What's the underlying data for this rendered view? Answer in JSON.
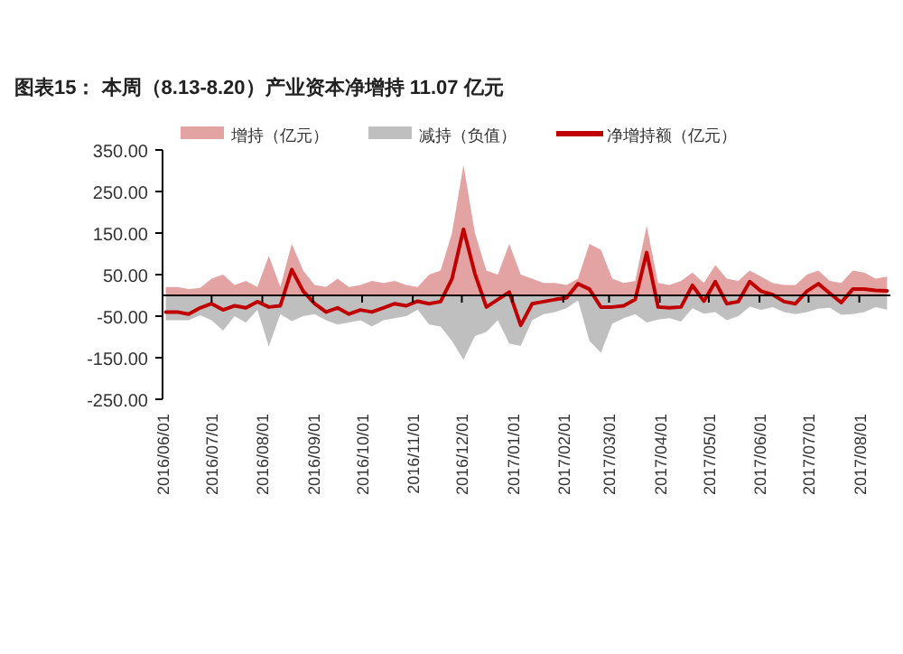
{
  "chart_data": {
    "type": "area",
    "title": "图表15：  本周（8.13-8.20）产业资本净增持 11.07 亿元",
    "x": [
      "2016-06-03",
      "2016-06-10",
      "2016-06-17",
      "2016-06-24",
      "2016-07-01",
      "2016-07-08",
      "2016-07-15",
      "2016-07-22",
      "2016-07-29",
      "2016-08-05",
      "2016-08-12",
      "2016-08-19",
      "2016-08-26",
      "2016-09-02",
      "2016-09-09",
      "2016-09-16",
      "2016-09-23",
      "2016-09-30",
      "2016-10-07",
      "2016-10-14",
      "2016-10-21",
      "2016-10-28",
      "2016-11-04",
      "2016-11-11",
      "2016-11-18",
      "2016-11-25",
      "2016-12-02",
      "2016-12-09",
      "2016-12-16",
      "2016-12-23",
      "2016-12-30",
      "2017-01-06",
      "2017-01-13",
      "2017-01-20",
      "2017-01-27",
      "2017-02-03",
      "2017-02-10",
      "2017-02-17",
      "2017-02-24",
      "2017-03-03",
      "2017-03-10",
      "2017-03-17",
      "2017-03-24",
      "2017-03-31",
      "2017-04-07",
      "2017-04-14",
      "2017-04-21",
      "2017-04-28",
      "2017-05-05",
      "2017-05-12",
      "2017-05-19",
      "2017-05-26",
      "2017-06-02",
      "2017-06-09",
      "2017-06-16",
      "2017-06-23",
      "2017-06-30",
      "2017-07-07",
      "2017-07-14",
      "2017-07-21",
      "2017-07-28",
      "2017-08-04",
      "2017-08-11",
      "2017-08-18"
    ],
    "series": [
      {
        "name": "增持（亿元）",
        "color": "#e3a3a3",
        "values": [
          20,
          20,
          15,
          18,
          40,
          50,
          25,
          35,
          20,
          95,
          20,
          124,
          60,
          25,
          20,
          40,
          20,
          25,
          35,
          30,
          35,
          25,
          20,
          50,
          60,
          150,
          314,
          150,
          60,
          50,
          124,
          50,
          40,
          30,
          30,
          25,
          40,
          124,
          110,
          40,
          30,
          35,
          168,
          30,
          25,
          35,
          55,
          30,
          73,
          40,
          35,
          60,
          45,
          30,
          25,
          25,
          50,
          60,
          35,
          30,
          60,
          55,
          40,
          45
        ]
      },
      {
        "name": "减持（负值）",
        "color": "#bfbfbf",
        "values": [
          -60,
          -60,
          -60,
          -48,
          -60,
          -85,
          -50,
          -65,
          -35,
          -123,
          -45,
          -62,
          -50,
          -45,
          -60,
          -70,
          -65,
          -60,
          -75,
          -60,
          -55,
          -50,
          -34,
          -70,
          -75,
          -110,
          -155,
          -98,
          -88,
          -60,
          -116,
          -122,
          -60,
          -45,
          -40,
          -31,
          -12,
          -109,
          -138,
          -68,
          -55,
          -45,
          -65,
          -58,
          -55,
          -63,
          -31,
          -44,
          -40,
          -60,
          -50,
          -27,
          -35,
          -28,
          -40,
          -45,
          -40,
          -32,
          -30,
          -47,
          -45,
          -40,
          -28,
          -34
        ]
      },
      {
        "name": "净增持额（亿元）",
        "type": "line",
        "color": "#c00000",
        "values": [
          -40,
          -40,
          -45,
          -30,
          -20,
          -35,
          -25,
          -30,
          -15,
          -28,
          -25,
          62,
          10,
          -20,
          -40,
          -30,
          -45,
          -35,
          -40,
          -30,
          -20,
          -25,
          -14,
          -20,
          -15,
          40,
          159,
          52,
          -28,
          -10,
          8,
          -72,
          -20,
          -15,
          -10,
          -6,
          28,
          15,
          -28,
          -28,
          -25,
          -10,
          103,
          -28,
          -30,
          -28,
          24,
          -14,
          33,
          -20,
          -15,
          33,
          10,
          2,
          -15,
          -20,
          10,
          28,
          5,
          -17,
          15,
          15,
          12,
          11
        ]
      }
    ],
    "xlim": [
      "2016-06-01",
      "2017-08-20"
    ],
    "xticks": [
      {
        "value": "2016-06-01",
        "label": "2016/06/01"
      },
      {
        "value": "2016-07-01",
        "label": "2016/07/01"
      },
      {
        "value": "2016-08-01",
        "label": "2016/08/01"
      },
      {
        "value": "2016-09-01",
        "label": "2016/09/01"
      },
      {
        "value": "2016-10-01",
        "label": "2016/10/01"
      },
      {
        "value": "2016-11-01",
        "label": "2016/11/01"
      },
      {
        "value": "2016-12-01",
        "label": "2016/12/01"
      },
      {
        "value": "2017-01-01",
        "label": "2017/01/01"
      },
      {
        "value": "2017-02-01",
        "label": "2017/02/01"
      },
      {
        "value": "2017-03-01",
        "label": "2017/03/01"
      },
      {
        "value": "2017-04-01",
        "label": "2017/04/01"
      },
      {
        "value": "2017-05-01",
        "label": "2017/05/01"
      },
      {
        "value": "2017-06-01",
        "label": "2017/06/01"
      },
      {
        "value": "2017-07-01",
        "label": "2017/07/01"
      },
      {
        "value": "2017-08-01",
        "label": "2017/08/01"
      }
    ],
    "ylim": [
      -250,
      350
    ],
    "yticks": [
      {
        "value": 350,
        "label": "350.00"
      },
      {
        "value": 250,
        "label": "250.00"
      },
      {
        "value": 150,
        "label": "150.00"
      },
      {
        "value": 50,
        "label": "50.00"
      },
      {
        "value": -50,
        "label": "-50.00"
      },
      {
        "value": -150,
        "label": "-150.00"
      },
      {
        "value": -250,
        "label": "-250.00"
      }
    ],
    "grid": false,
    "legend": "top"
  }
}
